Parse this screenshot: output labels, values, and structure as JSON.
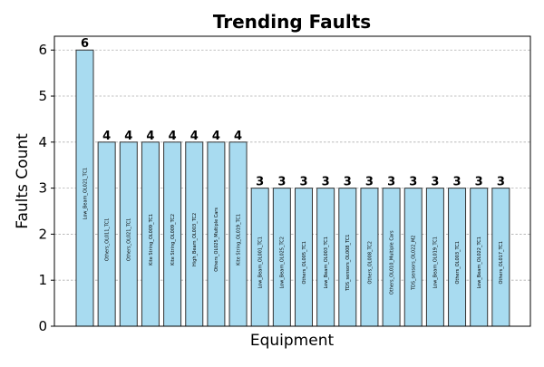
{
  "chart_data": {
    "type": "bar",
    "title": "Trending Faults",
    "xlabel": "Equipment",
    "ylabel": "Faults Count",
    "ylim": [
      0,
      6.3
    ],
    "yticks": [
      0,
      1,
      2,
      3,
      4,
      5,
      6
    ],
    "grid": "y-dashed",
    "bar_color": "#a8dbf0",
    "bar_edge_color": "#333333",
    "categories": [
      "Low_Beam_OL021_TC1",
      "Others_OL011_TC1",
      "Others_OL021_TC1",
      "Kite String_OL009_TC1",
      "Kite String_OL009_TC2",
      "High_Beam_OL003_TC2",
      "Others_OL025_Multiple Cars",
      "Kite String_OL019_TC1",
      "Low_Beam_OL001_TC1",
      "Low_Beam_OL025_TC2",
      "Others_OL005_TC1",
      "Low_Beam_OL003_TC1",
      "TDS_sensors_OL008_TC1",
      "Others_OL008_TC2",
      "Others_OL010_Multiple Cars",
      "TDS_sensors_OL022_M2",
      "Low_Beam_OL019_TC1",
      "Others_OL003_TC1",
      "Low_Beam_OL022_TC1",
      "Others_OL017_TC1"
    ],
    "values": [
      6,
      4,
      4,
      4,
      4,
      4,
      4,
      4,
      3,
      3,
      3,
      3,
      3,
      3,
      3,
      3,
      3,
      3,
      3,
      3
    ]
  }
}
